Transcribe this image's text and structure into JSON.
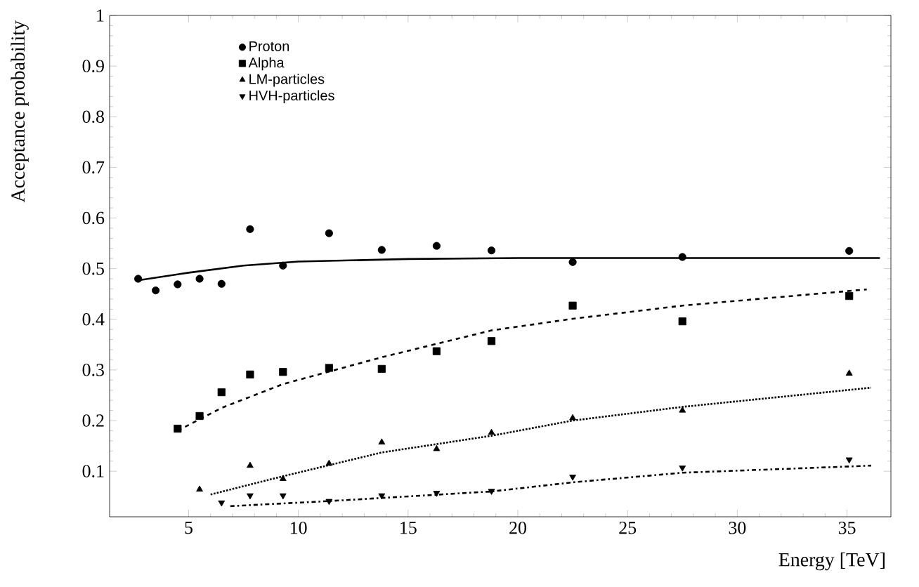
{
  "chart_data": {
    "type": "scatter",
    "xlabel": "Energy [TeV]",
    "ylabel": "Acceptance probability",
    "xlim": [
      1.4,
      37
    ],
    "ylim": [
      0.01,
      1
    ],
    "xticks": [
      5,
      10,
      15,
      20,
      25,
      30,
      35
    ],
    "yticks": [
      0.1,
      0.2,
      0.3,
      0.4,
      0.5,
      0.6,
      0.7,
      0.8,
      0.9,
      1
    ],
    "legend": "top left",
    "grid": false,
    "series": [
      {
        "name": "Proton",
        "color": "#000000",
        "marker": "circle",
        "x": [
          2.7,
          3.5,
          4.5,
          5.5,
          6.5,
          7.8,
          9.3,
          11.4,
          13.8,
          16.3,
          18.8,
          22.5,
          27.5,
          35.1
        ],
        "values": [
          0.48,
          0.457,
          0.469,
          0.48,
          0.47,
          0.578,
          0.506,
          0.57,
          0.537,
          0.545,
          0.536,
          0.513,
          0.523,
          0.535
        ]
      },
      {
        "name": "Alpha",
        "color": "#000000",
        "marker": "square",
        "x": [
          4.5,
          5.5,
          6.5,
          7.8,
          9.3,
          11.4,
          13.8,
          16.3,
          18.8,
          22.5,
          27.5,
          35.1
        ],
        "values": [
          0.184,
          0.209,
          0.256,
          0.291,
          0.296,
          0.304,
          0.302,
          0.337,
          0.357,
          0.427,
          0.396,
          0.446
        ]
      },
      {
        "name": "LM-particles",
        "color": "#000000",
        "marker": "triangle",
        "x": [
          5.5,
          7.8,
          9.3,
          11.4,
          13.8,
          16.3,
          18.8,
          22.5,
          27.5,
          35.1
        ],
        "values": [
          0.064,
          0.111,
          0.085,
          0.115,
          0.157,
          0.144,
          0.176,
          0.205,
          0.22,
          0.293
        ]
      },
      {
        "name": "HVH-particles",
        "color": "#000000",
        "marker": "triangle-down",
        "x": [
          6.5,
          7.8,
          9.3,
          11.4,
          13.8,
          16.3,
          18.8,
          22.5,
          27.5,
          35.1
        ],
        "values": [
          0.038,
          0.052,
          0.052,
          0.041,
          0.052,
          0.057,
          0.061,
          0.089,
          0.107,
          0.123
        ]
      },
      {
        "type": "line",
        "color": "#000000",
        "line_style": "solid",
        "x": [
          2.7,
          5,
          7.5,
          10,
          15,
          20,
          25,
          30,
          36.5
        ],
        "values": [
          0.477,
          0.492,
          0.506,
          0.514,
          0.519,
          0.521,
          0.521,
          0.521,
          0.521
        ]
      },
      {
        "type": "line",
        "color": "#000000",
        "line_style": "dashed",
        "x": [
          4.5,
          6.5,
          9.3,
          13.8,
          18.8,
          22.5,
          27.5,
          35.9
        ],
        "values": [
          0.18,
          0.225,
          0.272,
          0.325,
          0.378,
          0.401,
          0.427,
          0.459
        ]
      },
      {
        "type": "line",
        "color": "#000000",
        "line_style": "dotted",
        "x": [
          6.0,
          9.3,
          13.8,
          18.8,
          22.5,
          27.5,
          36.1
        ],
        "values": [
          0.054,
          0.09,
          0.137,
          0.17,
          0.2,
          0.227,
          0.265
        ]
      },
      {
        "type": "line",
        "color": "#000000",
        "line_style": "dashdot",
        "x": [
          6.9,
          11.4,
          18.8,
          22.5,
          27.5,
          36.1
        ],
        "values": [
          0.031,
          0.041,
          0.06,
          0.078,
          0.097,
          0.111
        ]
      }
    ]
  }
}
